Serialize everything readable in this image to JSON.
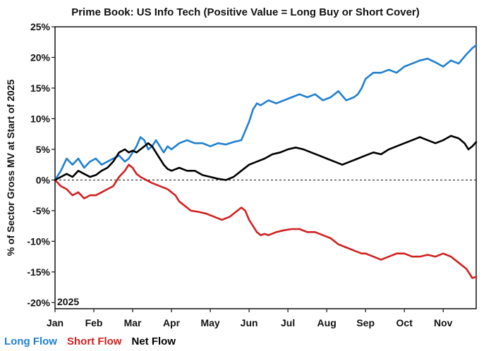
{
  "chart_data": {
    "type": "line",
    "title": "Prime Book: US Info Tech (Positive Value = Long Buy or Short Cover)",
    "xlabel": "",
    "ylabel": "% of Sector Gross MV at Start of 2025",
    "year_label": "2025",
    "ylim": [
      -21,
      25
    ],
    "yticks": [
      25,
      20,
      15,
      10,
      5,
      0,
      -5,
      -10,
      -15,
      -20
    ],
    "ytick_labels": [
      "25%",
      "20%",
      "15%",
      "10%",
      "5%",
      "0%",
      "-5%",
      "-10%",
      "-15%",
      "-20%"
    ],
    "xlim": [
      0,
      10.85
    ],
    "month_labels": [
      "Jan",
      "Feb",
      "Mar",
      "Apr",
      "May",
      "Jun",
      "Jul",
      "Aug",
      "Sep",
      "Oct",
      "Nov"
    ],
    "zero_line": "dashed",
    "legend_position": "bottom-left",
    "series": [
      {
        "name": "Long Flow",
        "color": "#1f7fd0",
        "x": [
          0,
          0.15,
          0.3,
          0.45,
          0.6,
          0.75,
          0.9,
          1.05,
          1.2,
          1.35,
          1.5,
          1.65,
          1.8,
          1.9,
          2.0,
          2.1,
          2.2,
          2.3,
          2.4,
          2.5,
          2.6,
          2.7,
          2.8,
          2.9,
          3.0,
          3.2,
          3.4,
          3.6,
          3.8,
          4.0,
          4.2,
          4.4,
          4.6,
          4.8,
          4.9,
          5.0,
          5.1,
          5.2,
          5.3,
          5.5,
          5.7,
          5.9,
          6.1,
          6.3,
          6.5,
          6.7,
          6.9,
          7.1,
          7.3,
          7.5,
          7.7,
          7.8,
          7.9,
          8.0,
          8.2,
          8.4,
          8.6,
          8.8,
          9.0,
          9.2,
          9.4,
          9.6,
          9.8,
          10.0,
          10.2,
          10.4,
          10.6,
          10.75,
          10.85
        ],
        "y": [
          0,
          1.5,
          3.5,
          2.5,
          3.5,
          2.0,
          3.0,
          3.5,
          2.5,
          3.0,
          3.5,
          4.0,
          3.0,
          3.5,
          4.5,
          5.5,
          7.0,
          6.5,
          5.0,
          5.5,
          6.5,
          5.5,
          4.5,
          5.5,
          5.0,
          6.0,
          6.5,
          6.0,
          6.0,
          5.5,
          6.0,
          5.8,
          6.2,
          6.5,
          8.0,
          9.5,
          11.5,
          12.5,
          12.2,
          13.0,
          12.5,
          13.0,
          13.5,
          14.0,
          13.5,
          14.0,
          13.0,
          13.5,
          14.5,
          13.0,
          13.5,
          14.0,
          15.0,
          16.5,
          17.5,
          17.5,
          18.0,
          17.5,
          18.5,
          19.0,
          19.5,
          19.8,
          19.2,
          18.5,
          19.5,
          19.0,
          20.5,
          21.5,
          22.0
        ]
      },
      {
        "name": "Short Flow",
        "color": "#d02020",
        "x": [
          0,
          0.15,
          0.3,
          0.45,
          0.6,
          0.75,
          0.9,
          1.05,
          1.2,
          1.35,
          1.5,
          1.65,
          1.8,
          1.9,
          2.0,
          2.1,
          2.2,
          2.35,
          2.5,
          2.7,
          2.9,
          3.0,
          3.1,
          3.2,
          3.3,
          3.4,
          3.5,
          3.7,
          3.9,
          4.1,
          4.3,
          4.5,
          4.7,
          4.8,
          4.9,
          5.0,
          5.1,
          5.2,
          5.3,
          5.4,
          5.5,
          5.7,
          5.9,
          6.1,
          6.3,
          6.5,
          6.7,
          6.9,
          7.1,
          7.3,
          7.5,
          7.7,
          7.9,
          8.0,
          8.2,
          8.4,
          8.6,
          8.8,
          9.0,
          9.2,
          9.4,
          9.6,
          9.8,
          10.0,
          10.2,
          10.4,
          10.6,
          10.75,
          10.85
        ],
        "y": [
          0,
          -1.0,
          -1.5,
          -2.5,
          -2.0,
          -3.0,
          -2.5,
          -2.5,
          -2.0,
          -1.5,
          -1.0,
          0.5,
          1.5,
          2.5,
          2.0,
          1.0,
          0.5,
          0.0,
          -0.5,
          -1.0,
          -1.5,
          -2.0,
          -2.5,
          -3.5,
          -4.0,
          -4.5,
          -5.0,
          -5.2,
          -5.5,
          -6.0,
          -6.5,
          -6.0,
          -5.0,
          -4.5,
          -5.0,
          -6.5,
          -7.5,
          -8.5,
          -9.0,
          -8.8,
          -9.0,
          -8.5,
          -8.2,
          -8.0,
          -8.0,
          -8.5,
          -8.5,
          -9.0,
          -9.5,
          -10.5,
          -11.0,
          -11.5,
          -12.0,
          -12.0,
          -12.5,
          -13.0,
          -12.5,
          -12.0,
          -12.0,
          -12.5,
          -12.5,
          -12.2,
          -12.5,
          -12.0,
          -12.5,
          -13.5,
          -14.5,
          -16.0,
          -15.8
        ]
      },
      {
        "name": "Net Flow",
        "color": "#000000",
        "x": [
          0,
          0.15,
          0.3,
          0.45,
          0.6,
          0.75,
          0.9,
          1.05,
          1.2,
          1.35,
          1.5,
          1.65,
          1.8,
          1.9,
          2.0,
          2.1,
          2.2,
          2.3,
          2.4,
          2.5,
          2.6,
          2.7,
          2.8,
          2.9,
          3.0,
          3.2,
          3.4,
          3.6,
          3.8,
          4.0,
          4.2,
          4.4,
          4.6,
          4.8,
          5.0,
          5.2,
          5.4,
          5.6,
          5.8,
          6.0,
          6.2,
          6.4,
          6.6,
          6.8,
          7.0,
          7.2,
          7.4,
          7.6,
          7.8,
          8.0,
          8.2,
          8.4,
          8.6,
          8.8,
          9.0,
          9.2,
          9.4,
          9.6,
          9.8,
          10.0,
          10.2,
          10.4,
          10.55,
          10.65,
          10.75,
          10.85
        ],
        "y": [
          0,
          0.5,
          1.0,
          0.5,
          1.5,
          1.0,
          0.5,
          0.8,
          1.5,
          2.0,
          3.0,
          4.5,
          5.0,
          4.5,
          4.8,
          4.5,
          5.0,
          5.5,
          6.0,
          5.5,
          4.5,
          3.5,
          2.5,
          1.8,
          1.5,
          2.0,
          1.5,
          1.5,
          0.8,
          0.5,
          0.2,
          0.0,
          0.5,
          1.5,
          2.5,
          3.0,
          3.5,
          4.2,
          4.5,
          5.0,
          5.3,
          5.0,
          4.5,
          4.0,
          3.5,
          3.0,
          2.5,
          3.0,
          3.5,
          4.0,
          4.5,
          4.2,
          5.0,
          5.5,
          6.0,
          6.5,
          7.0,
          6.5,
          6.0,
          6.5,
          7.2,
          6.8,
          6.0,
          5.0,
          5.5,
          6.2
        ]
      }
    ]
  }
}
